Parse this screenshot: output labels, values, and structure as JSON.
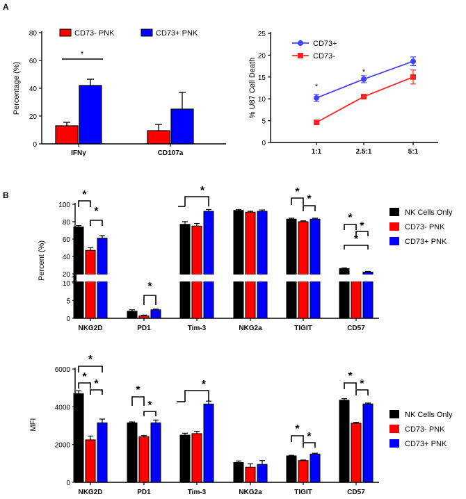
{
  "panel_labels": {
    "a": "A",
    "b": "B"
  },
  "chart_data": [
    {
      "type": "bar",
      "title": "",
      "ylabel": "Percentage (%)",
      "ylim": [
        0,
        80
      ],
      "yticks": [
        0,
        20,
        40,
        60,
        80
      ],
      "categories": [
        "IFNγ",
        "CD107a"
      ],
      "legend": [
        "CD73- PNK",
        "CD73+ PNK"
      ],
      "legend_position": "top",
      "series": [
        {
          "name": "CD73- PNK",
          "color": "#ff0000",
          "values": [
            13,
            9.5
          ],
          "errors": [
            2.5,
            4.5
          ]
        },
        {
          "name": "CD73+ PNK",
          "color": "#0000ff",
          "values": [
            42,
            25
          ],
          "errors": [
            4.5,
            12
          ]
        }
      ],
      "annotations": [
        {
          "text": "*",
          "between": "IFNγ groups"
        }
      ]
    },
    {
      "type": "line",
      "title": "",
      "ylabel": "% U87 Cell Death",
      "ylim": [
        0,
        25
      ],
      "yticks": [
        0,
        5,
        10,
        15,
        20,
        25
      ],
      "categories": [
        "1:1",
        "2.5:1",
        "5:1"
      ],
      "legend": [
        "CD73+",
        "CD73-"
      ],
      "legend_position": "top-left",
      "series": [
        {
          "name": "CD73+",
          "color": "#4040ff",
          "marker": "circle",
          "values": [
            10.2,
            14.5,
            18.6
          ],
          "errors": [
            0.8,
            0.8,
            1.0
          ]
        },
        {
          "name": "CD73-",
          "color": "#ff2020",
          "marker": "square",
          "values": [
            4.6,
            10.5,
            15.0
          ],
          "errors": [
            0.5,
            0.4,
            1.6
          ]
        }
      ],
      "annotations": [
        {
          "text": "*",
          "at": "1:1"
        },
        {
          "text": "*",
          "at": "2.5:1"
        }
      ]
    },
    {
      "type": "bar",
      "title": "",
      "ylabel": "Percent (%)",
      "axis_break": [
        10,
        20
      ],
      "lower_ticks": [
        0,
        5,
        10
      ],
      "upper_ticks": [
        20,
        40,
        60,
        80,
        100
      ],
      "categories": [
        "NKG2D",
        "PD1",
        "Tim-3",
        "NKG2a",
        "TIGIT",
        "CD57"
      ],
      "legend": [
        "NK Cells Only",
        "CD73- PNK",
        "CD73+ PNK"
      ],
      "legend_position": "right",
      "series": [
        {
          "name": "NK Cells Only",
          "color": "#000000",
          "values": [
            74,
            2.0,
            77,
            93,
            83,
            26
          ],
          "errors": [
            1.5,
            0.4,
            3,
            1,
            1,
            0.8
          ]
        },
        {
          "name": "CD73- PNK",
          "color": "#ff0000",
          "values": [
            47,
            0.7,
            75,
            91,
            80,
            13
          ],
          "errors": [
            3,
            0.2,
            3,
            1,
            1,
            0.6
          ]
        },
        {
          "name": "CD73+ PNK",
          "color": "#0000ff",
          "values": [
            61,
            2.4,
            92,
            92,
            83,
            22
          ],
          "errors": [
            3,
            0.2,
            2,
            1.5,
            1,
            0.8
          ]
        }
      ]
    },
    {
      "type": "bar",
      "title": "",
      "ylabel": "MFI",
      "ylim": [
        0,
        6000
      ],
      "yticks": [
        0,
        2000,
        4000,
        6000
      ],
      "categories": [
        "NKG2D",
        "PD1",
        "Tim-3",
        "NKG2a",
        "TIGIT",
        "CD57"
      ],
      "legend": [
        "NK Cells Only",
        "CD73- PNK",
        "CD73+ PNK"
      ],
      "legend_position": "right",
      "series": [
        {
          "name": "NK Cells Only",
          "color": "#000000",
          "values": [
            4700,
            3150,
            2500,
            1050,
            1400,
            4350
          ],
          "errors": [
            150,
            50,
            100,
            80,
            30,
            80
          ]
        },
        {
          "name": "CD73- PNK",
          "color": "#ff0000",
          "values": [
            2250,
            2420,
            2580,
            800,
            1150,
            3130
          ],
          "errors": [
            200,
            60,
            120,
            180,
            30,
            50
          ]
        },
        {
          "name": "CD73+ PNK",
          "color": "#0000ff",
          "values": [
            3150,
            3150,
            4150,
            950,
            1500,
            4150
          ],
          "errors": [
            200,
            150,
            150,
            200,
            40,
            50
          ]
        }
      ]
    }
  ],
  "significance": {
    "marker": "*"
  }
}
